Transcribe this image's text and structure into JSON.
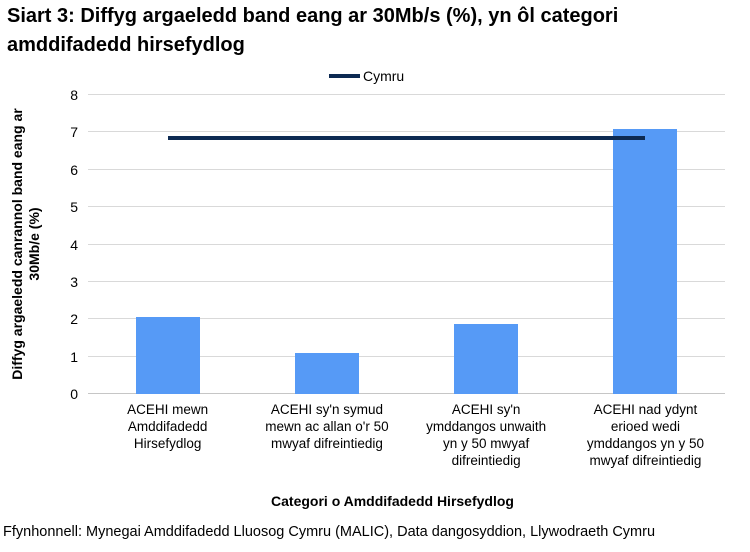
{
  "title": "Siart 3: Diffyg argaeledd band eang ar 30Mb/s (%), yn ôl categori\namddifadedd hirsefydlog",
  "legend": {
    "label": "Cymru"
  },
  "source": "Ffynhonnell: Mynegai Amddifadedd Lluosog Cymru (MALIC), Data dangosyddion, Llywodraeth Cymru",
  "colors": {
    "bar": "#569AF6",
    "cymru_line": "#0D2A52",
    "gridline": "#D9D9D9",
    "axis_line": "#C6C6C6",
    "text": "#000000"
  },
  "chart_data": {
    "type": "bar",
    "title": "Siart 3: Diffyg argaeledd band eang ar 30Mb/s (%), yn ôl categori amddifadedd hirsefydlog",
    "categories": [
      "ACEHI mewn\nAmddifadedd\nHirsefydlog",
      "ACEHI sy'n symud\nmewn ac allan o'r 50\nmwyaf difreintiedig",
      "ACEHI sy'n\nymddangos unwaith\nyn y 50 mwyaf\ndifreintiedig",
      "ACEHI nad ydynt\nerioed wedi\nymddangos yn y 50\nmwyaf difreintiedig"
    ],
    "series": [
      {
        "type": "bar",
        "values": [
          2.05,
          1.1,
          1.87,
          7.09
        ]
      },
      {
        "name": "Cymru",
        "type": "line",
        "values": [
          6.85,
          6.85,
          6.85,
          6.85
        ]
      }
    ],
    "xlabel": "Categori o Amddifadedd Hirsefydlog",
    "ylabel": "Diffyg argaeledd canrannol band eang ar 30Mb/e (%)",
    "ylabel_lines": [
      "Diffyg argaeledd canrannol band eang ar",
      "30Mb/e (%)"
    ],
    "ylim": [
      0,
      8
    ],
    "yticks": [
      0,
      1,
      2,
      3,
      4,
      5,
      6,
      7,
      8
    ],
    "grid": true,
    "legend_position": "top-center"
  }
}
